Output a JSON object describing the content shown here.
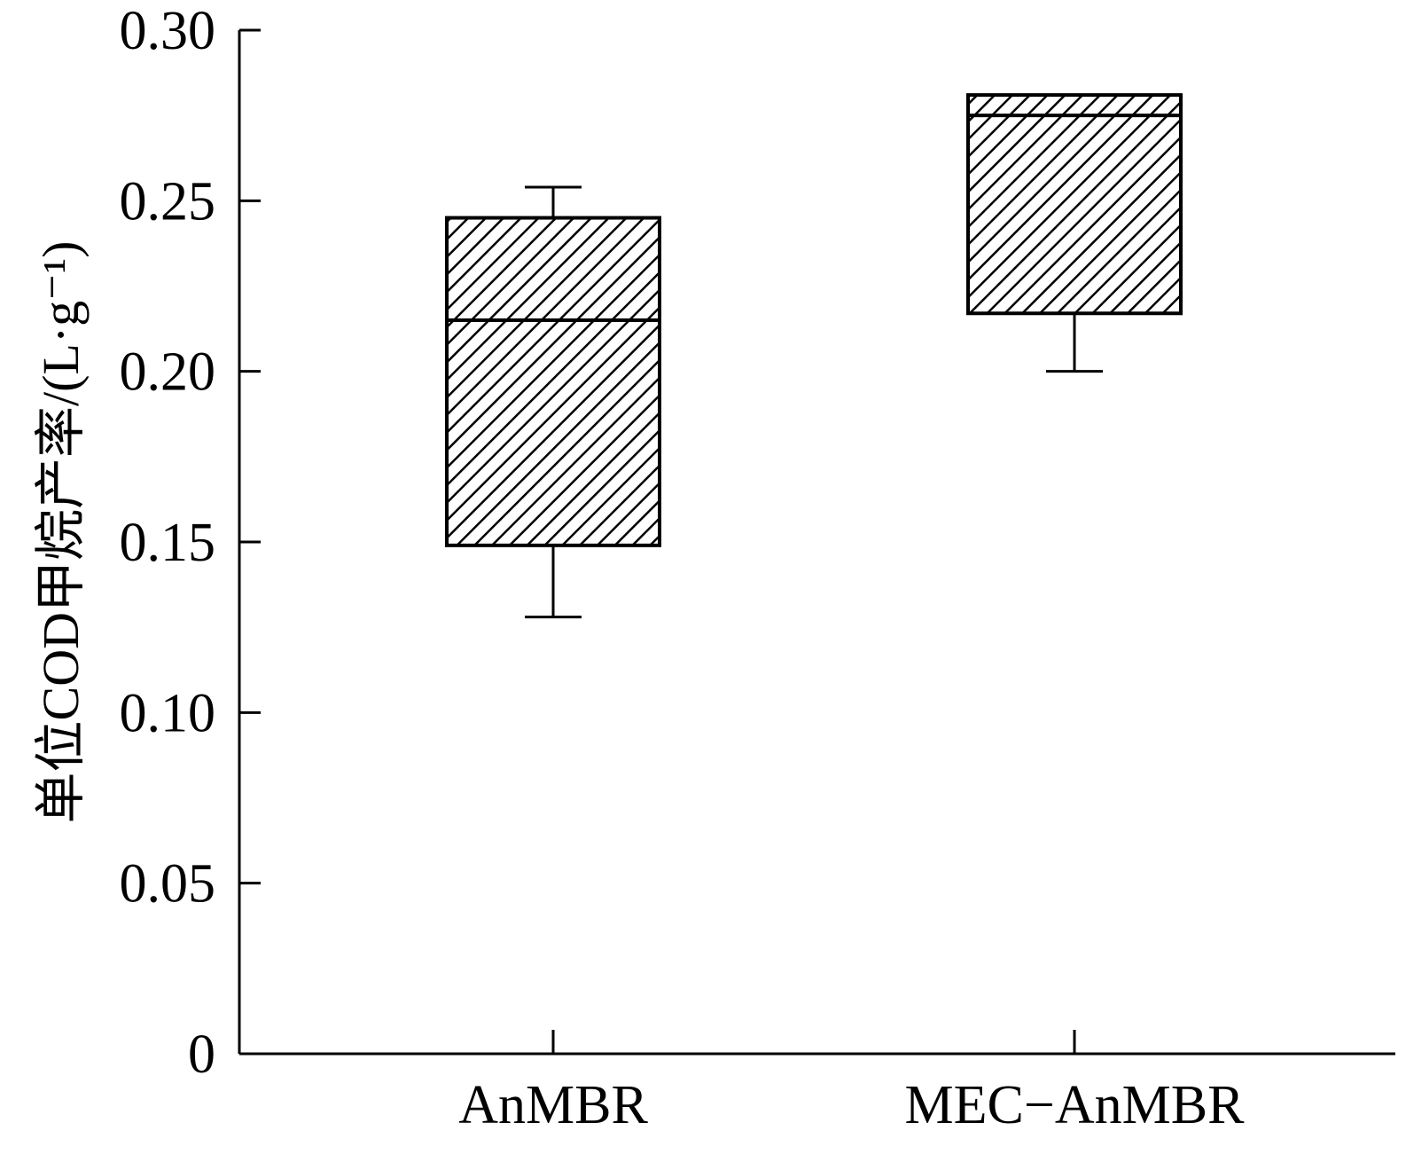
{
  "chart_data": {
    "type": "box",
    "ylabel": "单位COD甲烷产率/(L·g⁻¹)",
    "xlabel": "",
    "ylim": [
      0,
      0.3
    ],
    "yticks": [
      "0",
      "0.05",
      "0.10",
      "0.15",
      "0.20",
      "0.25",
      "0.30"
    ],
    "categories": [
      "AnMBR",
      "MEC−AnMBR"
    ],
    "boxes": [
      {
        "category": "AnMBR",
        "whisker_low": 0.128,
        "q1": 0.149,
        "median": 0.215,
        "q3": 0.245,
        "whisker_high": 0.254
      },
      {
        "category": "MEC−AnMBR",
        "whisker_low": 0.2,
        "q1": 0.217,
        "median": 0.275,
        "q3": 0.281,
        "whisker_high": 0.281
      }
    ],
    "fill_pattern": "diagonal-hatch",
    "grid": false,
    "legend": "none"
  }
}
